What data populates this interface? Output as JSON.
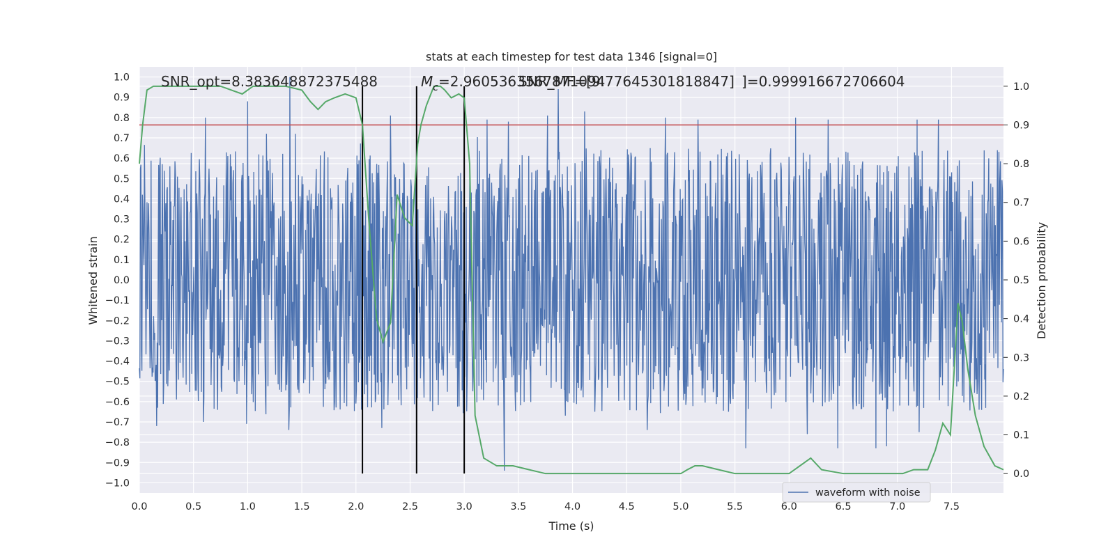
{
  "chart_data": {
    "type": "line",
    "title": "stats at each timestep for test data 1346 [signal=0]",
    "xlabel": "Time (s)",
    "ylabel_left": "Whitened strain",
    "ylabel_right": "Detection probability",
    "xlim": [
      0.0,
      7.98
    ],
    "ylim_left": [
      -1.05,
      1.05
    ],
    "ylim_right": [
      -0.05,
      1.05
    ],
    "xticks": [
      "0.0",
      "0.5",
      "1.0",
      "1.5",
      "2.0",
      "2.5",
      "3.0",
      "3.5",
      "4.0",
      "4.5",
      "5.0",
      "5.5",
      "6.0",
      "6.5",
      "7.0",
      "7.5"
    ],
    "yticks_left": [
      "1.0",
      "0.9",
      "0.8",
      "0.7",
      "0.6",
      "0.5",
      "0.4",
      "0.3",
      "0.2",
      "0.1",
      "0.0",
      "−0.1",
      "−0.2",
      "−0.3",
      "−0.4",
      "−0.5",
      "−0.6",
      "−0.7",
      "−0.8",
      "−0.9",
      "−1.0"
    ],
    "yticks_right": [
      "1.0",
      "0.9",
      "0.8",
      "0.7",
      "0.6",
      "0.5",
      "0.4",
      "0.3",
      "0.2",
      "0.1",
      "0.0"
    ],
    "grid": true,
    "legend_position": "lower-right",
    "annotations": {
      "snr_opt": "SNR_opt=8.383648872375488",
      "chirp_mass": "=2.9605363567871094",
      "chirp_mass_symbol": "M",
      "chirp_mass_sub": "c",
      "snr_mf": "SNR_MF=[9.77645301818847]",
      "match": "=0.999916672706604",
      "match_symbol": "]"
    },
    "series": [
      {
        "name": "waveform with noise",
        "axis": "left",
        "color": "#4c72b0",
        "kind": "noise",
        "time_range": [
          0.0,
          7.98
        ],
        "typical_amplitude": 0.55,
        "max_value": 1.0,
        "min_value": -0.94,
        "peaks": [
          {
            "x": 1.0,
            "y": 0.88
          },
          {
            "x": 1.39,
            "y": 1.0
          },
          {
            "x": 3.87,
            "y": 0.94
          },
          {
            "x": 0.61,
            "y": 0.8
          },
          {
            "x": 2.32,
            "y": 0.81
          },
          {
            "x": 3.21,
            "y": 0.79
          },
          {
            "x": 3.41,
            "y": 0.78
          },
          {
            "x": 3.77,
            "y": 0.81
          },
          {
            "x": 4.11,
            "y": 0.83
          },
          {
            "x": 4.86,
            "y": 0.8
          },
          {
            "x": 5.16,
            "y": 0.79
          },
          {
            "x": 6.06,
            "y": 0.8
          },
          {
            "x": 6.36,
            "y": 0.79
          },
          {
            "x": 7.18,
            "y": 0.79
          },
          {
            "x": 7.38,
            "y": 0.79
          },
          {
            "x": 3.37,
            "y": -0.94
          },
          {
            "x": 1.38,
            "y": -0.74
          },
          {
            "x": 0.99,
            "y": -0.71
          },
          {
            "x": 2.24,
            "y": -0.73
          },
          {
            "x": 5.6,
            "y": -0.83
          },
          {
            "x": 6.45,
            "y": -0.83
          },
          {
            "x": 6.8,
            "y": -0.83
          },
          {
            "x": 6.9,
            "y": -0.82
          },
          {
            "x": 6.17,
            "y": -0.76
          },
          {
            "x": 4.69,
            "y": -0.74
          },
          {
            "x": 7.2,
            "y": -0.75
          },
          {
            "x": 2.05,
            "y": -0.64
          },
          {
            "x": 0.17,
            "y": -0.63
          },
          {
            "x": 0.59,
            "y": -0.7
          }
        ]
      },
      {
        "name": "detection probability",
        "axis": "right",
        "color": "#55a868",
        "x": [
          0.0,
          0.03,
          0.07,
          0.13,
          0.2,
          0.3,
          0.45,
          0.6,
          0.75,
          0.85,
          0.95,
          1.05,
          1.2,
          1.35,
          1.5,
          1.58,
          1.65,
          1.72,
          1.8,
          1.9,
          2.0,
          2.06,
          2.12,
          2.19,
          2.25,
          2.32,
          2.38,
          2.45,
          2.52,
          2.57,
          2.6,
          2.65,
          2.72,
          2.78,
          2.82,
          2.88,
          2.95,
          3.0,
          3.05,
          3.1,
          3.18,
          3.3,
          3.45,
          3.6,
          3.75,
          3.9,
          4.1,
          4.3,
          4.6,
          5.0,
          5.06,
          5.13,
          5.2,
          5.35,
          5.5,
          5.8,
          6.0,
          6.1,
          6.2,
          6.3,
          6.5,
          6.8,
          7.05,
          7.15,
          7.28,
          7.35,
          7.42,
          7.49,
          7.56,
          7.6,
          7.65,
          7.72,
          7.8,
          7.9,
          7.98
        ],
        "y": [
          0.8,
          0.9,
          0.99,
          1.0,
          1.0,
          1.0,
          1.0,
          1.0,
          1.0,
          0.99,
          0.98,
          1.0,
          1.0,
          1.0,
          0.99,
          0.96,
          0.94,
          0.96,
          0.97,
          0.98,
          0.97,
          0.9,
          0.65,
          0.4,
          0.34,
          0.39,
          0.72,
          0.66,
          0.64,
          0.85,
          0.9,
          0.95,
          1.0,
          1.0,
          0.99,
          0.97,
          0.98,
          0.97,
          0.8,
          0.15,
          0.04,
          0.02,
          0.02,
          0.01,
          0.0,
          0.0,
          0.0,
          0.0,
          0.0,
          0.0,
          0.01,
          0.02,
          0.02,
          0.01,
          0.0,
          0.0,
          0.0,
          0.02,
          0.04,
          0.01,
          0.0,
          0.0,
          0.0,
          0.01,
          0.01,
          0.06,
          0.13,
          0.1,
          0.44,
          0.39,
          0.27,
          0.15,
          0.07,
          0.02,
          0.01
        ]
      }
    ],
    "threshold_line": {
      "axis": "right",
      "value": 0.9,
      "color": "#c44e52"
    },
    "vertical_lines": [
      {
        "x": 2.06,
        "from": 0.0,
        "to": 1.0
      },
      {
        "x": 2.56,
        "from": 0.0,
        "to": 1.0
      },
      {
        "x": 3.0,
        "from": 0.0,
        "to": 1.0
      }
    ]
  }
}
